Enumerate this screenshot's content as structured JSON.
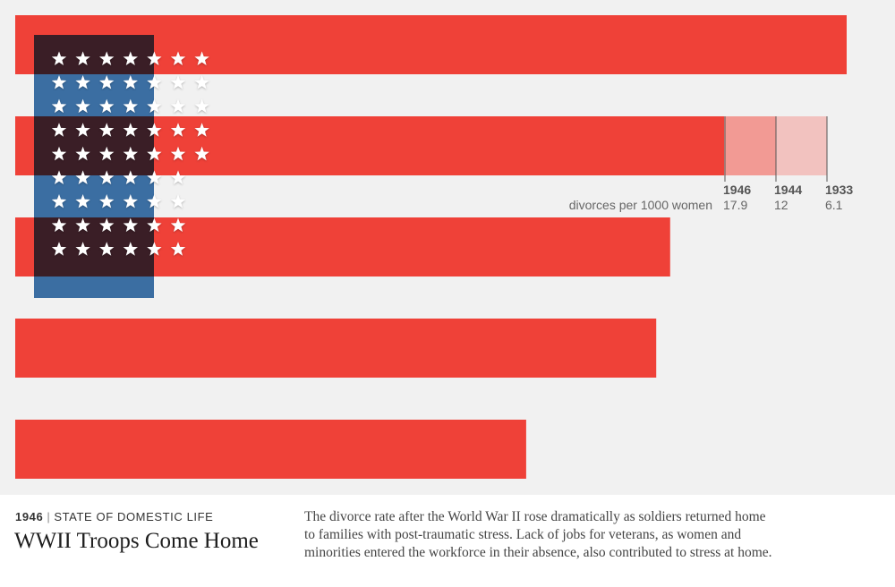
{
  "chart_data": {
    "type": "bar",
    "orientation": "horizontal",
    "xlim": [
      0,
      17.9
    ],
    "legend": {
      "label": "divorces per 1000 women",
      "placement": "right of second bar",
      "entries": [
        {
          "year": "1946",
          "value": 17.9,
          "value_label": "17.9"
        },
        {
          "year": "1944",
          "value": 12,
          "value_label": "12"
        },
        {
          "year": "1933",
          "value": 6.1,
          "value_label": "6.1"
        }
      ]
    },
    "bars": [
      {
        "value": 17.9
      },
      {
        "value": 14.6
      },
      {
        "value": 14.1
      },
      {
        "value": 13.8
      },
      {
        "value": 11.0
      }
    ],
    "flag_stars": [
      7,
      7,
      7,
      7,
      7,
      6,
      6,
      6,
      6
    ]
  },
  "colors": {
    "background": "#f1f1f1",
    "bar": "#ef4138",
    "bar_light_1944": "#f29a94",
    "bar_light_1933": "#f2c2bf",
    "flag_blue": "#1c5b9e",
    "star": "#ffffff"
  },
  "caption": {
    "year": "1946",
    "separator": "|",
    "category": "STATE OF DOMESTIC LIFE",
    "title": "WWII Troops Come Home",
    "body_lines": [
      "The divorce rate after the World War II rose dramatically as soldiers returned home",
      "to families with post-traumatic stress. Lack of jobs for veterans, as women and",
      "minorities entered the workforce in their absence, also contributed to stress at home."
    ]
  }
}
